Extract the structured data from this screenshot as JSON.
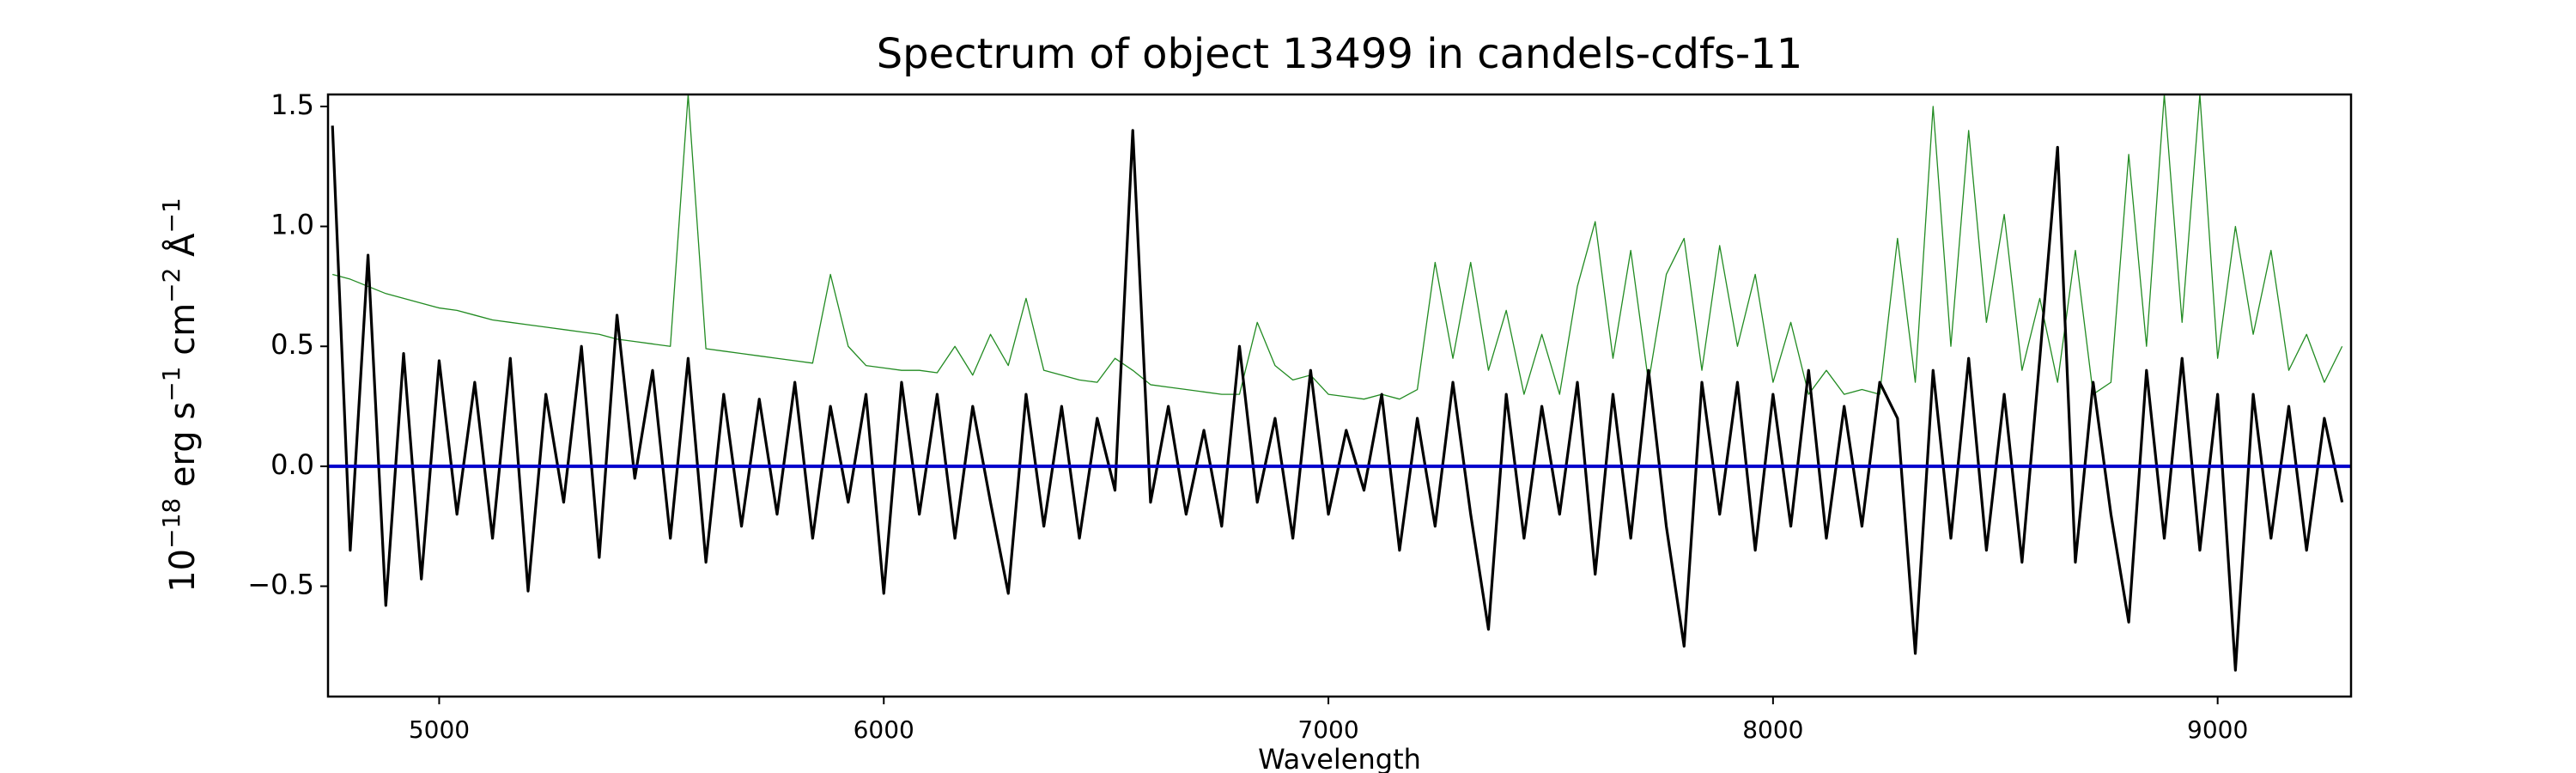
{
  "chart_data": {
    "type": "line",
    "title": "Spectrum of object 13499 in candels-cdfs-11",
    "xlabel": "Wavelength",
    "ylabel": [
      "10",
      "−18",
      " erg s",
      "−1",
      " cm",
      "−2",
      " Å",
      "−1"
    ],
    "xlim": [
      4750,
      9300
    ],
    "ylim": [
      -0.96,
      1.55
    ],
    "xticks": [
      5000,
      6000,
      7000,
      8000,
      9000
    ],
    "yticks": [
      {
        "value": -0.5,
        "label": "−0.5"
      },
      {
        "value": 0,
        "label": "0.0"
      },
      0.5,
      {
        "value": 1,
        "label": "1.0"
      },
      1.5
    ],
    "grid": false,
    "series": [
      {
        "color": "#228b22",
        "width": 1.3,
        "x": [
          4760,
          4800,
          4840,
          4880,
          4920,
          4960,
          5000,
          5040,
          5080,
          5120,
          5160,
          5200,
          5240,
          5280,
          5320,
          5360,
          5400,
          5440,
          5480,
          5520,
          5560,
          5600,
          5640,
          5680,
          5720,
          5760,
          5800,
          5840,
          5880,
          5920,
          5960,
          6000,
          6040,
          6080,
          6120,
          6160,
          6200,
          6240,
          6280,
          6320,
          6360,
          6400,
          6440,
          6480,
          6520,
          6560,
          6600,
          6640,
          6680,
          6720,
          6760,
          6800,
          6840,
          6880,
          6920,
          6960,
          7000,
          7040,
          7080,
          7120,
          7160,
          7200,
          7240,
          7280,
          7320,
          7360,
          7400,
          7440,
          7480,
          7520,
          7560,
          7600,
          7640,
          7680,
          7720,
          7760,
          7800,
          7840,
          7880,
          7920,
          7960,
          8000,
          8040,
          8080,
          8120,
          8160,
          8200,
          8240,
          8280,
          8320,
          8360,
          8400,
          8440,
          8480,
          8520,
          8560,
          8600,
          8640,
          8680,
          8720,
          8760,
          8800,
          8840,
          8880,
          8920,
          8960,
          9000,
          9040,
          9080,
          9120,
          9160,
          9200,
          9240,
          9280
        ],
        "values": [
          0.8,
          0.78,
          0.75,
          0.72,
          0.7,
          0.68,
          0.66,
          0.65,
          0.63,
          0.61,
          0.6,
          0.59,
          0.58,
          0.57,
          0.56,
          0.55,
          0.53,
          0.52,
          0.51,
          0.5,
          1.55,
          0.49,
          0.48,
          0.47,
          0.46,
          0.45,
          0.44,
          0.43,
          0.8,
          0.5,
          0.42,
          0.41,
          0.4,
          0.4,
          0.39,
          0.5,
          0.38,
          0.55,
          0.42,
          0.7,
          0.4,
          0.38,
          0.36,
          0.35,
          0.45,
          0.4,
          0.34,
          0.33,
          0.32,
          0.31,
          0.3,
          0.3,
          0.6,
          0.42,
          0.36,
          0.38,
          0.3,
          0.29,
          0.28,
          0.3,
          0.28,
          0.32,
          0.85,
          0.45,
          0.85,
          0.4,
          0.65,
          0.3,
          0.55,
          0.3,
          0.75,
          1.02,
          0.45,
          0.9,
          0.35,
          0.8,
          0.95,
          0.4,
          0.92,
          0.5,
          0.8,
          0.35,
          0.6,
          0.3,
          0.4,
          0.3,
          0.32,
          0.3,
          0.95,
          0.35,
          1.5,
          0.5,
          1.4,
          0.6,
          1.05,
          0.4,
          0.7,
          0.35,
          0.9,
          0.3,
          0.35,
          1.3,
          0.5,
          1.55,
          0.6,
          1.55,
          0.45,
          1.0,
          0.55,
          0.9,
          0.4,
          0.55,
          0.35,
          0.5
        ]
      },
      {
        "color": "#000000",
        "width": 3.2,
        "x": [
          4760,
          4800,
          4840,
          4880,
          4920,
          4960,
          5000,
          5040,
          5080,
          5120,
          5160,
          5200,
          5240,
          5280,
          5320,
          5360,
          5400,
          5440,
          5480,
          5520,
          5560,
          5600,
          5640,
          5680,
          5720,
          5760,
          5800,
          5840,
          5880,
          5920,
          5960,
          6000,
          6040,
          6080,
          6120,
          6160,
          6200,
          6240,
          6280,
          6320,
          6360,
          6400,
          6440,
          6480,
          6520,
          6560,
          6600,
          6640,
          6680,
          6720,
          6760,
          6800,
          6840,
          6880,
          6920,
          6960,
          7000,
          7040,
          7080,
          7120,
          7160,
          7200,
          7240,
          7280,
          7320,
          7360,
          7400,
          7440,
          7480,
          7520,
          7560,
          7600,
          7640,
          7680,
          7720,
          7760,
          7800,
          7840,
          7880,
          7920,
          7960,
          8000,
          8040,
          8080,
          8120,
          8160,
          8200,
          8240,
          8280,
          8320,
          8360,
          8400,
          8440,
          8480,
          8520,
          8560,
          8600,
          8640,
          8680,
          8720,
          8760,
          8800,
          8840,
          8880,
          8920,
          8960,
          9000,
          9040,
          9080,
          9120,
          9160,
          9200,
          9240,
          9280
        ],
        "values": [
          1.42,
          -0.35,
          0.88,
          -0.58,
          0.47,
          -0.47,
          0.44,
          -0.2,
          0.35,
          -0.3,
          0.45,
          -0.52,
          0.3,
          -0.15,
          0.5,
          -0.38,
          0.63,
          -0.05,
          0.4,
          -0.3,
          0.45,
          -0.4,
          0.3,
          -0.25,
          0.28,
          -0.2,
          0.35,
          -0.3,
          0.25,
          -0.15,
          0.3,
          -0.53,
          0.35,
          -0.2,
          0.3,
          -0.3,
          0.25,
          -0.15,
          -0.53,
          0.3,
          -0.25,
          0.25,
          -0.3,
          0.2,
          -0.1,
          1.4,
          -0.15,
          0.25,
          -0.2,
          0.15,
          -0.25,
          0.5,
          -0.15,
          0.2,
          -0.3,
          0.4,
          -0.2,
          0.15,
          -0.1,
          0.3,
          -0.35,
          0.2,
          -0.25,
          0.35,
          -0.2,
          -0.68,
          0.3,
          -0.3,
          0.25,
          -0.2,
          0.35,
          -0.45,
          0.3,
          -0.3,
          0.4,
          -0.25,
          -0.75,
          0.35,
          -0.2,
          0.35,
          -0.35,
          0.3,
          -0.25,
          0.4,
          -0.3,
          0.25,
          -0.25,
          0.35,
          0.2,
          -0.78,
          0.4,
          -0.3,
          0.45,
          -0.35,
          0.3,
          -0.4,
          0.45,
          1.33,
          -0.4,
          0.35,
          -0.2,
          -0.65,
          0.4,
          -0.3,
          0.45,
          -0.35,
          0.3,
          -0.85,
          0.3,
          -0.3,
          0.25,
          -0.35,
          0.2,
          -0.15
        ]
      },
      {
        "color": "#0000cc",
        "width": 4,
        "x": [
          4750,
          9300
        ],
        "values": [
          0,
          0
        ]
      }
    ]
  }
}
